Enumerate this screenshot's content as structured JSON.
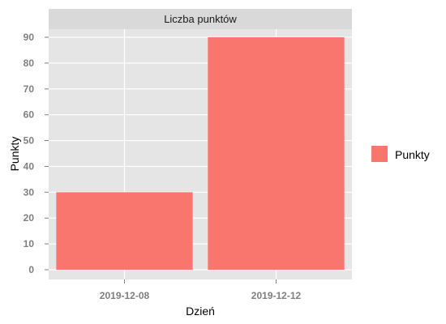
{
  "chart_data": {
    "type": "bar",
    "title": "Liczba punktów",
    "xlabel": "Dzień",
    "ylabel": "Punkty",
    "categories": [
      "2019-12-08",
      "2019-12-12"
    ],
    "series": [
      {
        "name": "Punkty",
        "values": [
          30,
          90
        ]
      }
    ],
    "ylim": [
      0,
      95
    ],
    "yticks": [
      0,
      10,
      20,
      30,
      40,
      50,
      60,
      70,
      80,
      90
    ],
    "grid": true,
    "legend_position": "right"
  },
  "colors": {
    "bar": "#f8766d",
    "panel_background": "#e5e5e5",
    "strip_background": "#d9d9d9",
    "grid": "#ffffff",
    "tick_text": "#7f7f7f"
  }
}
